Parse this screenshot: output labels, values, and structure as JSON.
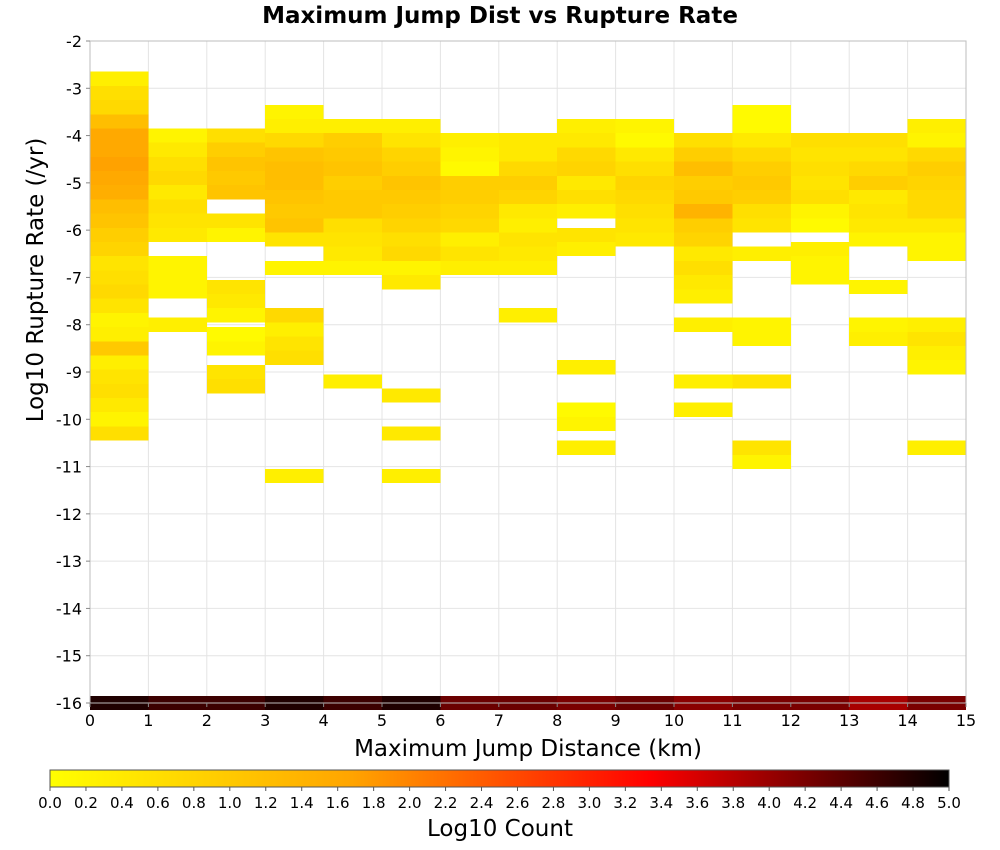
{
  "chart_data": {
    "type": "heatmap",
    "title": "Maximum Jump Dist vs Rupture Rate",
    "xlabel": "Maximum Jump Distance (km)",
    "ylabel": "Log10 Rupture Rate (/yr)",
    "xlim": [
      0,
      15
    ],
    "ylim": [
      -16,
      -2
    ],
    "x_ticks": [
      "0",
      "1",
      "2",
      "3",
      "4",
      "5",
      "6",
      "7",
      "8",
      "9",
      "10",
      "11",
      "12",
      "13",
      "14",
      "15"
    ],
    "y_ticks": [
      "-2",
      "-3",
      "-4",
      "-5",
      "-6",
      "-7",
      "-8",
      "-9",
      "-10",
      "-11",
      "-12",
      "-13",
      "-14",
      "-15",
      "-16"
    ],
    "bin_width_x": 1,
    "bin_height_y": 0.3,
    "grid": true,
    "colorbar": {
      "label": "Log10 Count",
      "min": 0.0,
      "max": 5.0,
      "ticks": [
        "0.0",
        "0.2",
        "0.4",
        "0.6",
        "0.8",
        "1.0",
        "1.2",
        "1.4",
        "1.6",
        "1.8",
        "2.0",
        "2.2",
        "2.4",
        "2.6",
        "2.8",
        "3.0",
        "3.2",
        "3.4",
        "3.6",
        "3.8",
        "4.0",
        "4.2",
        "4.4",
        "4.6",
        "4.8",
        "5.0"
      ],
      "colors": [
        "#ffff00",
        "#ffa500",
        "#ff0000",
        "#000000"
      ]
    },
    "cells": [
      {
        "x": 0,
        "y": -2.8,
        "v": 0.3
      },
      {
        "x": 0,
        "y": -3.1,
        "v": 0.6
      },
      {
        "x": 0,
        "y": -3.4,
        "v": 0.7
      },
      {
        "x": 0,
        "y": -3.7,
        "v": 1.2
      },
      {
        "x": 0,
        "y": -4.0,
        "v": 1.6
      },
      {
        "x": 0,
        "y": -4.3,
        "v": 1.6
      },
      {
        "x": 0,
        "y": -4.6,
        "v": 1.7
      },
      {
        "x": 0,
        "y": -4.9,
        "v": 1.6
      },
      {
        "x": 0,
        "y": -5.2,
        "v": 1.5
      },
      {
        "x": 0,
        "y": -5.5,
        "v": 1.2
      },
      {
        "x": 0,
        "y": -5.8,
        "v": 1.1
      },
      {
        "x": 0,
        "y": -6.1,
        "v": 0.9
      },
      {
        "x": 0,
        "y": -6.4,
        "v": 0.8
      },
      {
        "x": 0,
        "y": -6.7,
        "v": 0.5
      },
      {
        "x": 0,
        "y": -7.0,
        "v": 0.6
      },
      {
        "x": 0,
        "y": -7.3,
        "v": 0.7
      },
      {
        "x": 0,
        "y": -7.6,
        "v": 0.5
      },
      {
        "x": 0,
        "y": -7.9,
        "v": 0.2
      },
      {
        "x": 0,
        "y": -8.2,
        "v": 0.3
      },
      {
        "x": 0,
        "y": -8.5,
        "v": 1.0
      },
      {
        "x": 0,
        "y": -8.8,
        "v": 0.3
      },
      {
        "x": 0,
        "y": -9.1,
        "v": 0.5
      },
      {
        "x": 0,
        "y": -9.4,
        "v": 0.6
      },
      {
        "x": 0,
        "y": -9.7,
        "v": 0.4
      },
      {
        "x": 0,
        "y": -10.0,
        "v": 0.2
      },
      {
        "x": 0,
        "y": -10.3,
        "v": 0.6
      },
      {
        "x": 1,
        "y": -4.0,
        "v": 0.2
      },
      {
        "x": 1,
        "y": -4.3,
        "v": 0.4
      },
      {
        "x": 1,
        "y": -4.6,
        "v": 0.6
      },
      {
        "x": 1,
        "y": -4.9,
        "v": 0.7
      },
      {
        "x": 1,
        "y": -5.2,
        "v": 0.4
      },
      {
        "x": 1,
        "y": -5.5,
        "v": 0.6
      },
      {
        "x": 1,
        "y": -5.8,
        "v": 0.5
      },
      {
        "x": 1,
        "y": -6.1,
        "v": 0.4
      },
      {
        "x": 1,
        "y": -6.7,
        "v": 0.2
      },
      {
        "x": 1,
        "y": -7.0,
        "v": 0.2
      },
      {
        "x": 1,
        "y": -7.3,
        "v": 0.2
      },
      {
        "x": 1,
        "y": -8.0,
        "v": 0.3
      },
      {
        "x": 2,
        "y": -4.0,
        "v": 0.6
      },
      {
        "x": 2,
        "y": -4.3,
        "v": 0.9
      },
      {
        "x": 2,
        "y": -4.6,
        "v": 1.1
      },
      {
        "x": 2,
        "y": -4.9,
        "v": 1.0
      },
      {
        "x": 2,
        "y": -5.2,
        "v": 1.1
      },
      {
        "x": 2,
        "y": -5.8,
        "v": 0.5
      },
      {
        "x": 2,
        "y": -6.1,
        "v": 0.2
      },
      {
        "x": 2,
        "y": -7.2,
        "v": 0.5
      },
      {
        "x": 2,
        "y": -7.5,
        "v": 0.4
      },
      {
        "x": 2,
        "y": -7.8,
        "v": 0.2
      },
      {
        "x": 2,
        "y": -8.2,
        "v": 0.1
      },
      {
        "x": 2,
        "y": -8.5,
        "v": 0.2
      },
      {
        "x": 2,
        "y": -9.0,
        "v": 0.5
      },
      {
        "x": 2,
        "y": -9.3,
        "v": 0.6
      },
      {
        "x": 3,
        "y": -3.5,
        "v": 0.2
      },
      {
        "x": 3,
        "y": -3.8,
        "v": 0.3
      },
      {
        "x": 3,
        "y": -4.1,
        "v": 0.7
      },
      {
        "x": 3,
        "y": -4.4,
        "v": 1.1
      },
      {
        "x": 3,
        "y": -4.7,
        "v": 1.2
      },
      {
        "x": 3,
        "y": -5.0,
        "v": 1.2
      },
      {
        "x": 3,
        "y": -5.3,
        "v": 1.1
      },
      {
        "x": 3,
        "y": -5.6,
        "v": 1.0
      },
      {
        "x": 3,
        "y": -5.9,
        "v": 1.1
      },
      {
        "x": 3,
        "y": -6.2,
        "v": 0.5
      },
      {
        "x": 3,
        "y": -6.8,
        "v": 0.2
      },
      {
        "x": 3,
        "y": -7.8,
        "v": 0.7
      },
      {
        "x": 3,
        "y": -8.1,
        "v": 0.3
      },
      {
        "x": 3,
        "y": -8.4,
        "v": 0.5
      },
      {
        "x": 3,
        "y": -8.7,
        "v": 0.6
      },
      {
        "x": 3,
        "y": -11.2,
        "v": 0.3
      },
      {
        "x": 4,
        "y": -3.8,
        "v": 0.3
      },
      {
        "x": 4,
        "y": -4.1,
        "v": 0.9
      },
      {
        "x": 4,
        "y": -4.4,
        "v": 1.0
      },
      {
        "x": 4,
        "y": -4.7,
        "v": 1.1
      },
      {
        "x": 4,
        "y": -5.0,
        "v": 0.9
      },
      {
        "x": 4,
        "y": -5.3,
        "v": 1.0
      },
      {
        "x": 4,
        "y": -5.6,
        "v": 1.0
      },
      {
        "x": 4,
        "y": -5.9,
        "v": 0.6
      },
      {
        "x": 4,
        "y": -6.2,
        "v": 0.5
      },
      {
        "x": 4,
        "y": -6.5,
        "v": 0.4
      },
      {
        "x": 4,
        "y": -6.8,
        "v": 0.2
      },
      {
        "x": 4,
        "y": -9.2,
        "v": 0.3
      },
      {
        "x": 5,
        "y": -3.8,
        "v": 0.3
      },
      {
        "x": 5,
        "y": -4.1,
        "v": 0.5
      },
      {
        "x": 5,
        "y": -4.4,
        "v": 0.8
      },
      {
        "x": 5,
        "y": -4.7,
        "v": 0.9
      },
      {
        "x": 5,
        "y": -5.0,
        "v": 1.1
      },
      {
        "x": 5,
        "y": -5.3,
        "v": 1.0
      },
      {
        "x": 5,
        "y": -5.6,
        "v": 0.9
      },
      {
        "x": 5,
        "y": -5.9,
        "v": 0.8
      },
      {
        "x": 5,
        "y": -6.2,
        "v": 0.6
      },
      {
        "x": 5,
        "y": -6.5,
        "v": 0.7
      },
      {
        "x": 5,
        "y": -6.8,
        "v": 0.2
      },
      {
        "x": 5,
        "y": -7.1,
        "v": 0.4
      },
      {
        "x": 5,
        "y": -9.5,
        "v": 0.4
      },
      {
        "x": 5,
        "y": -10.3,
        "v": 0.4
      },
      {
        "x": 5,
        "y": -11.2,
        "v": 0.3
      },
      {
        "x": 6,
        "y": -4.1,
        "v": 0.3
      },
      {
        "x": 6,
        "y": -4.4,
        "v": 0.2
      },
      {
        "x": 6,
        "y": -4.7,
        "v": 0.1
      },
      {
        "x": 6,
        "y": -5.0,
        "v": 0.9
      },
      {
        "x": 6,
        "y": -5.3,
        "v": 0.9
      },
      {
        "x": 6,
        "y": -5.6,
        "v": 0.8
      },
      {
        "x": 6,
        "y": -5.9,
        "v": 0.7
      },
      {
        "x": 6,
        "y": -6.2,
        "v": 0.3
      },
      {
        "x": 6,
        "y": -6.5,
        "v": 0.5
      },
      {
        "x": 6,
        "y": -6.8,
        "v": 0.3
      },
      {
        "x": 7,
        "y": -4.1,
        "v": 0.4
      },
      {
        "x": 7,
        "y": -4.4,
        "v": 0.4
      },
      {
        "x": 7,
        "y": -4.7,
        "v": 0.7
      },
      {
        "x": 7,
        "y": -5.0,
        "v": 0.9
      },
      {
        "x": 7,
        "y": -5.3,
        "v": 0.8
      },
      {
        "x": 7,
        "y": -5.6,
        "v": 0.4
      },
      {
        "x": 7,
        "y": -5.9,
        "v": 0.3
      },
      {
        "x": 7,
        "y": -6.2,
        "v": 0.5
      },
      {
        "x": 7,
        "y": -6.5,
        "v": 0.4
      },
      {
        "x": 7,
        "y": -6.8,
        "v": 0.3
      },
      {
        "x": 7,
        "y": -7.8,
        "v": 0.3
      },
      {
        "x": 8,
        "y": -3.8,
        "v": 0.3
      },
      {
        "x": 8,
        "y": -4.1,
        "v": 0.4
      },
      {
        "x": 8,
        "y": -4.4,
        "v": 0.7
      },
      {
        "x": 8,
        "y": -4.7,
        "v": 0.8
      },
      {
        "x": 8,
        "y": -5.0,
        "v": 0.4
      },
      {
        "x": 8,
        "y": -5.3,
        "v": 0.6
      },
      {
        "x": 8,
        "y": -5.6,
        "v": 0.3
      },
      {
        "x": 8,
        "y": -6.1,
        "v": 0.5
      },
      {
        "x": 8,
        "y": -6.4,
        "v": 0.3
      },
      {
        "x": 8,
        "y": -8.9,
        "v": 0.3
      },
      {
        "x": 8,
        "y": -9.8,
        "v": 0.1
      },
      {
        "x": 8,
        "y": -10.1,
        "v": 0.2
      },
      {
        "x": 8,
        "y": -10.6,
        "v": 0.3
      },
      {
        "x": 9,
        "y": -3.8,
        "v": 0.2
      },
      {
        "x": 9,
        "y": -4.1,
        "v": 0.1
      },
      {
        "x": 9,
        "y": -4.4,
        "v": 0.4
      },
      {
        "x": 9,
        "y": -4.7,
        "v": 0.6
      },
      {
        "x": 9,
        "y": -5.0,
        "v": 0.8
      },
      {
        "x": 9,
        "y": -5.3,
        "v": 0.7
      },
      {
        "x": 9,
        "y": -5.6,
        "v": 0.6
      },
      {
        "x": 9,
        "y": -5.9,
        "v": 0.5
      },
      {
        "x": 9,
        "y": -6.2,
        "v": 0.4
      },
      {
        "x": 10,
        "y": -4.1,
        "v": 0.6
      },
      {
        "x": 10,
        "y": -4.4,
        "v": 0.9
      },
      {
        "x": 10,
        "y": -4.7,
        "v": 1.2
      },
      {
        "x": 10,
        "y": -5.0,
        "v": 0.9
      },
      {
        "x": 10,
        "y": -5.3,
        "v": 1.0
      },
      {
        "x": 10,
        "y": -5.6,
        "v": 1.4
      },
      {
        "x": 10,
        "y": -5.9,
        "v": 0.9
      },
      {
        "x": 10,
        "y": -6.2,
        "v": 0.8
      },
      {
        "x": 10,
        "y": -6.5,
        "v": 0.4
      },
      {
        "x": 10,
        "y": -6.8,
        "v": 0.6
      },
      {
        "x": 10,
        "y": -7.1,
        "v": 0.4
      },
      {
        "x": 10,
        "y": -7.4,
        "v": 0.3
      },
      {
        "x": 10,
        "y": -8.0,
        "v": 0.3
      },
      {
        "x": 10,
        "y": -9.2,
        "v": 0.3
      },
      {
        "x": 10,
        "y": -9.8,
        "v": 0.3
      },
      {
        "x": 11,
        "y": -3.5,
        "v": 0.1
      },
      {
        "x": 11,
        "y": -3.8,
        "v": 0.1
      },
      {
        "x": 11,
        "y": -4.1,
        "v": 0.4
      },
      {
        "x": 11,
        "y": -4.4,
        "v": 0.7
      },
      {
        "x": 11,
        "y": -4.7,
        "v": 0.9
      },
      {
        "x": 11,
        "y": -5.0,
        "v": 1.0
      },
      {
        "x": 11,
        "y": -5.3,
        "v": 0.9
      },
      {
        "x": 11,
        "y": -5.6,
        "v": 0.6
      },
      {
        "x": 11,
        "y": -5.9,
        "v": 0.5
      },
      {
        "x": 11,
        "y": -6.5,
        "v": 0.3
      },
      {
        "x": 11,
        "y": -8.0,
        "v": 0.2
      },
      {
        "x": 11,
        "y": -8.3,
        "v": 0.2
      },
      {
        "x": 11,
        "y": -9.2,
        "v": 0.5
      },
      {
        "x": 11,
        "y": -10.6,
        "v": 0.5
      },
      {
        "x": 11,
        "y": -10.9,
        "v": 0.2
      },
      {
        "x": 12,
        "y": -4.1,
        "v": 0.6
      },
      {
        "x": 12,
        "y": -4.4,
        "v": 0.5
      },
      {
        "x": 12,
        "y": -4.7,
        "v": 0.6
      },
      {
        "x": 12,
        "y": -5.0,
        "v": 0.5
      },
      {
        "x": 12,
        "y": -5.3,
        "v": 0.6
      },
      {
        "x": 12,
        "y": -5.6,
        "v": 0.2
      },
      {
        "x": 12,
        "y": -5.9,
        "v": 0.1
      },
      {
        "x": 12,
        "y": -6.4,
        "v": 0.3
      },
      {
        "x": 12,
        "y": -6.7,
        "v": 0.2
      },
      {
        "x": 12,
        "y": -7.0,
        "v": 0.2
      },
      {
        "x": 13,
        "y": -4.1,
        "v": 0.6
      },
      {
        "x": 13,
        "y": -4.4,
        "v": 0.5
      },
      {
        "x": 13,
        "y": -4.7,
        "v": 0.7
      },
      {
        "x": 13,
        "y": -5.0,
        "v": 0.9
      },
      {
        "x": 13,
        "y": -5.3,
        "v": 0.4
      },
      {
        "x": 13,
        "y": -5.6,
        "v": 0.5
      },
      {
        "x": 13,
        "y": -5.9,
        "v": 0.4
      },
      {
        "x": 13,
        "y": -6.2,
        "v": 0.2
      },
      {
        "x": 13,
        "y": -7.2,
        "v": 0.2
      },
      {
        "x": 13,
        "y": -8.0,
        "v": 0.2
      },
      {
        "x": 13,
        "y": -8.3,
        "v": 0.3
      },
      {
        "x": 14,
        "y": -3.8,
        "v": 0.3
      },
      {
        "x": 14,
        "y": -4.1,
        "v": 0.2
      },
      {
        "x": 14,
        "y": -4.4,
        "v": 0.7
      },
      {
        "x": 14,
        "y": -4.7,
        "v": 0.9
      },
      {
        "x": 14,
        "y": -5.0,
        "v": 0.8
      },
      {
        "x": 14,
        "y": -5.3,
        "v": 0.7
      },
      {
        "x": 14,
        "y": -5.6,
        "v": 0.7
      },
      {
        "x": 14,
        "y": -5.9,
        "v": 0.4
      },
      {
        "x": 14,
        "y": -6.2,
        "v": 0.2
      },
      {
        "x": 14,
        "y": -6.5,
        "v": 0.2
      },
      {
        "x": 14,
        "y": -8.0,
        "v": 0.3
      },
      {
        "x": 14,
        "y": -8.3,
        "v": 0.5
      },
      {
        "x": 14,
        "y": -8.6,
        "v": 0.3
      },
      {
        "x": 14,
        "y": -8.9,
        "v": 0.2
      },
      {
        "x": 14,
        "y": -10.6,
        "v": 0.3
      },
      {
        "x": 0,
        "y": -16.0,
        "v": 4.8
      },
      {
        "x": 1,
        "y": -16.0,
        "v": 4.6
      },
      {
        "x": 2,
        "y": -16.0,
        "v": 4.6
      },
      {
        "x": 3,
        "y": -16.0,
        "v": 4.8
      },
      {
        "x": 4,
        "y": -16.0,
        "v": 4.6
      },
      {
        "x": 5,
        "y": -16.0,
        "v": 4.8
      },
      {
        "x": 6,
        "y": -16.0,
        "v": 4.3
      },
      {
        "x": 7,
        "y": -16.0,
        "v": 4.3
      },
      {
        "x": 8,
        "y": -16.0,
        "v": 4.2
      },
      {
        "x": 9,
        "y": -16.0,
        "v": 4.3
      },
      {
        "x": 10,
        "y": -16.0,
        "v": 4.1
      },
      {
        "x": 11,
        "y": -16.0,
        "v": 4.2
      },
      {
        "x": 12,
        "y": -16.0,
        "v": 4.2
      },
      {
        "x": 13,
        "y": -16.0,
        "v": 3.9
      },
      {
        "x": 14,
        "y": -16.0,
        "v": 4.2
      }
    ]
  }
}
